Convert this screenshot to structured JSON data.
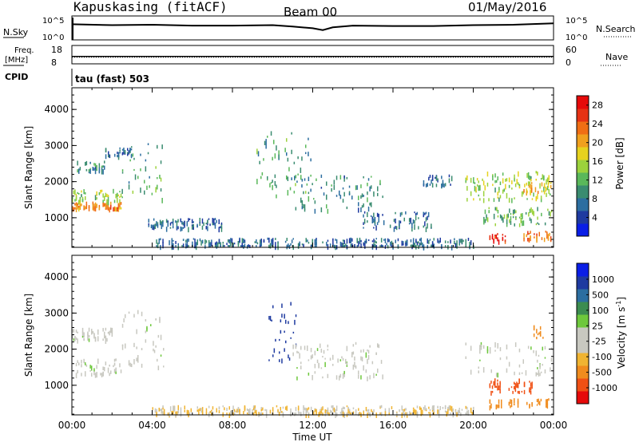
{
  "header": {
    "station": "Kapuskasing (fitACF)",
    "beam": "Beam 00",
    "date": "01/May/2016"
  },
  "param_panel": {
    "nsky_label": "N.Sky",
    "nsky_ticks": [
      "10^5",
      "10^0"
    ],
    "nsearch_label": "N.Search",
    "nsearch_ticks": [
      "10^5",
      "10^0"
    ],
    "freq_label_1": "Freq.",
    "freq_label_2": "[MHz]",
    "freq_ticks": [
      "18",
      "8"
    ],
    "nave_label": "Nave",
    "nave_ticks": [
      "60",
      "0"
    ],
    "cpid_label": "CPID",
    "cpid_value": "tau (fast) 503"
  },
  "colors": {
    "power": [
      "#0a1ee6",
      "#1e3aa0",
      "#2c6ea0",
      "#3a8c70",
      "#5ab85a",
      "#9cd23c",
      "#e6d21e",
      "#f0a01e",
      "#f06e14",
      "#e63214",
      "#e60a0a"
    ],
    "velocity": [
      "#e60a0a",
      "#f05014",
      "#f08c1e",
      "#f0b432",
      "#c8c8c0",
      "#c8c8c0",
      "#6ec83c",
      "#3c8c50",
      "#2c6ea0",
      "#1e3aa0",
      "#0a1ee6"
    ],
    "ground": "#c8c8c0"
  },
  "chart_data": [
    {
      "type": "line",
      "title": "N.Sky",
      "x": [
        "00:00",
        "02:00",
        "04:00",
        "06:00",
        "08:00",
        "10:00",
        "11:00",
        "12:00",
        "12:30",
        "13:00",
        "14:00",
        "16:00",
        "18:00",
        "20:00",
        "22:00",
        "24:00"
      ],
      "y_log10": [
        3.5,
        3.3,
        3.4,
        3.2,
        3.2,
        3.3,
        3.0,
        2.6,
        2.2,
        2.8,
        3.2,
        3.1,
        3.1,
        3.3,
        3.4,
        3.7
      ],
      "ylim_log10": [
        0,
        5
      ]
    },
    {
      "type": "line",
      "title": "Freq. [MHz]",
      "x": [
        "00:00",
        "24:00"
      ],
      "y": [
        12,
        12
      ],
      "ylim": [
        8,
        18
      ],
      "secondary": {
        "name": "Nave",
        "ylim": [
          0,
          60
        ]
      }
    },
    {
      "type": "heatmap",
      "title": "Power [dB]",
      "xlabel": "Time UT",
      "ylabel": "Slant Range [km]",
      "x_ticks": [
        "00:00",
        "04:00",
        "08:00",
        "12:00",
        "16:00",
        "20:00",
        "00:00"
      ],
      "y_ticks": [
        1000,
        2000,
        3000,
        4000
      ],
      "ylim": [
        180,
        4600
      ],
      "colorbar_label": "Power [dB]",
      "colorbar_ticks": [
        "4",
        "8",
        "12",
        "16",
        "20",
        "24",
        "28"
      ],
      "colorbar_range": [
        0,
        30
      ],
      "echo_regions": [
        {
          "t": [
            0.0,
            2.5
          ],
          "r": [
            1250,
            1450
          ],
          "v": 22
        },
        {
          "t": [
            0.0,
            2.5
          ],
          "r": [
            1450,
            1800
          ],
          "v": 14
        },
        {
          "t": [
            0.0,
            1.6
          ],
          "r": [
            2300,
            2600
          ],
          "v": 8
        },
        {
          "t": [
            1.6,
            3.0
          ],
          "r": [
            2700,
            2950
          ],
          "v": 6
        },
        {
          "t": [
            2.5,
            4.6
          ],
          "r": [
            1500,
            3100
          ],
          "v": 10
        },
        {
          "t": [
            3.8,
            7.5
          ],
          "r": [
            700,
            1000
          ],
          "v": 6
        },
        {
          "t": [
            9.2,
            12.0
          ],
          "r": [
            1600,
            3400
          ],
          "v": 10
        },
        {
          "t": [
            11.0,
            15.5
          ],
          "r": [
            1200,
            2200
          ],
          "v": 8
        },
        {
          "t": [
            14.5,
            18.0
          ],
          "r": [
            700,
            1200
          ],
          "v": 6
        },
        {
          "t": [
            17.5,
            19.0
          ],
          "r": [
            1900,
            2200
          ],
          "v": 6
        },
        {
          "t": [
            19.6,
            23.9
          ],
          "r": [
            1500,
            2300
          ],
          "v": 14
        },
        {
          "t": [
            20.5,
            23.9
          ],
          "r": [
            800,
            1300
          ],
          "v": 12
        },
        {
          "t": [
            22.5,
            23.9
          ],
          "r": [
            1700,
            2000
          ],
          "v": 20
        },
        {
          "t": [
            20.8,
            21.6
          ],
          "r": [
            350,
            600
          ],
          "v": 28
        },
        {
          "t": [
            22.5,
            23.9
          ],
          "r": [
            400,
            650
          ],
          "v": 24
        },
        {
          "t": [
            4.0,
            20.0
          ],
          "r": [
            200,
            450
          ],
          "v": 6
        }
      ]
    },
    {
      "type": "heatmap",
      "title": "Velocity [m s^-1]",
      "xlabel": "Time UT",
      "ylabel": "Slant Range [km]",
      "x_ticks": [
        "00:00",
        "04:00",
        "08:00",
        "12:00",
        "16:00",
        "20:00",
        "00:00"
      ],
      "y_ticks": [
        1000,
        2000,
        3000,
        4000
      ],
      "ylim": [
        180,
        4600
      ],
      "colorbar_label": "Velocity [m s^-1]",
      "colorbar_ticks": [
        "1000",
        "500",
        "100",
        "25",
        "-25",
        "-100",
        "-500",
        "-1000"
      ],
      "echo_regions": [
        {
          "t": [
            0.0,
            2.5
          ],
          "r": [
            1300,
            1750
          ],
          "v": 0
        },
        {
          "t": [
            0.0,
            2.0
          ],
          "r": [
            2250,
            2600
          ],
          "v": 0
        },
        {
          "t": [
            2.5,
            4.6
          ],
          "r": [
            1500,
            3100
          ],
          "v": 0
        },
        {
          "t": [
            9.8,
            11.2
          ],
          "r": [
            1600,
            3400
          ],
          "v": 600
        },
        {
          "t": [
            11.0,
            15.5
          ],
          "r": [
            1200,
            2200
          ],
          "v": 0
        },
        {
          "t": [
            19.6,
            23.9
          ],
          "r": [
            1300,
            2200
          ],
          "v": 0
        },
        {
          "t": [
            20.8,
            23.0
          ],
          "r": [
            800,
            1200
          ],
          "v": -600
        },
        {
          "t": [
            20.8,
            23.8
          ],
          "r": [
            400,
            650
          ],
          "v": -150
        },
        {
          "t": [
            4.0,
            20.0
          ],
          "r": [
            200,
            450
          ],
          "v": -60
        },
        {
          "t": [
            23.0,
            23.5
          ],
          "r": [
            2300,
            2800
          ],
          "v": -300
        }
      ]
    }
  ],
  "axes": {
    "time_label": "Time UT",
    "range_label": "Slant Range [km]"
  }
}
